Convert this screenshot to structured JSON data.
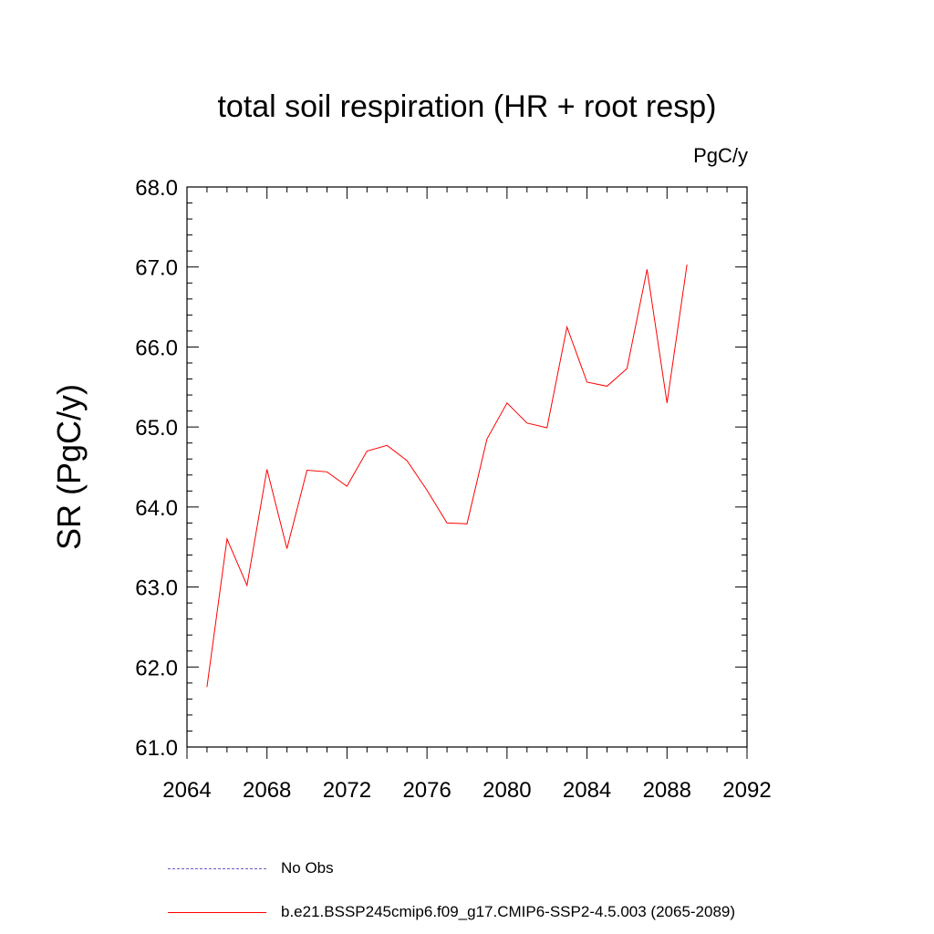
{
  "chart_data": {
    "type": "line",
    "title": "total soil respiration (HR + root resp)",
    "units": "PgC/y",
    "ylabel": "SR  (PgC/y)",
    "xlabel": "",
    "xlim": [
      2064,
      2092
    ],
    "ylim": [
      61.0,
      68.0
    ],
    "x_ticks": [
      2064,
      2068,
      2072,
      2076,
      2080,
      2084,
      2088,
      2092
    ],
    "y_ticks": [
      "61.0",
      "62.0",
      "63.0",
      "64.0",
      "65.0",
      "66.0",
      "67.0",
      "68.0"
    ],
    "grid": false,
    "legend_position": "bottom",
    "series": [
      {
        "name": "No Obs",
        "color": "#6a5acd",
        "dash": "dashed",
        "x": [],
        "values": []
      },
      {
        "name": "b.e21.BSSP245cmip6.f09_g17.CMIP6-SSP2-4.5.003 (2065-2089)",
        "color": "#ff0000",
        "dash": "solid",
        "x": [
          2065,
          2066,
          2067,
          2068,
          2069,
          2070,
          2071,
          2072,
          2073,
          2074,
          2075,
          2076,
          2077,
          2078,
          2079,
          2080,
          2081,
          2082,
          2083,
          2084,
          2085,
          2086,
          2087,
          2088,
          2089
        ],
        "values": [
          61.75,
          63.6,
          63.02,
          64.47,
          63.48,
          64.46,
          64.44,
          64.26,
          64.7,
          64.77,
          64.58,
          64.21,
          63.8,
          63.79,
          64.85,
          65.3,
          65.05,
          64.99,
          66.25,
          65.56,
          65.51,
          65.73,
          66.97,
          65.3,
          67.03
        ]
      }
    ]
  }
}
